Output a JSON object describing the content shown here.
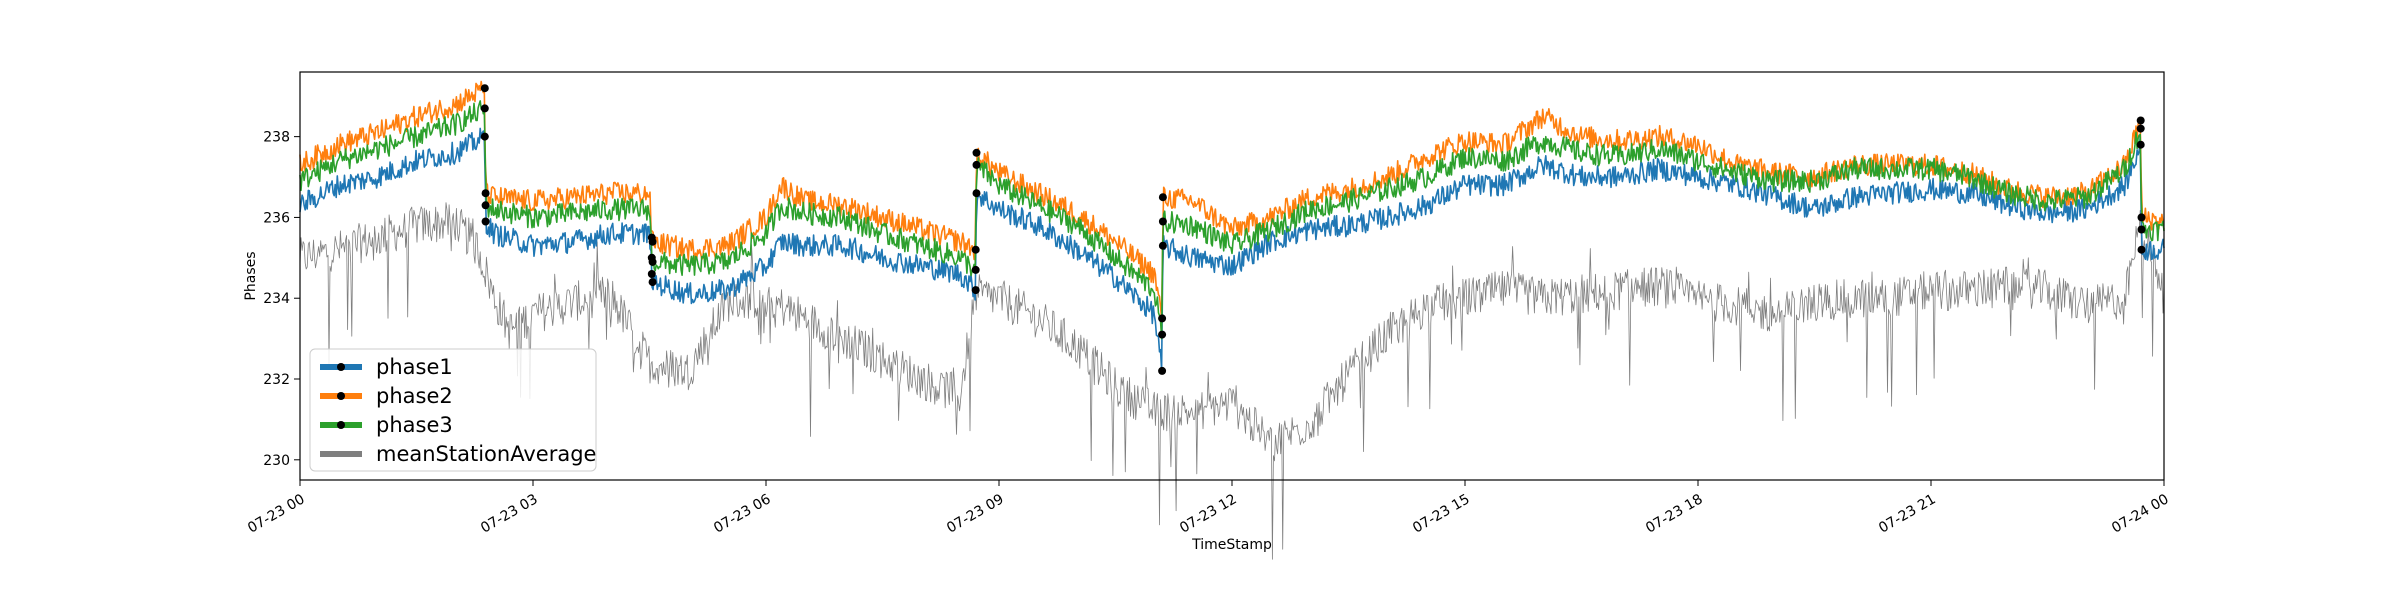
{
  "chart_data": {
    "type": "line",
    "xlabel": "TimeStamp",
    "ylabel": "Phases",
    "x_ticks": [
      "07-23 00",
      "07-23 03",
      "07-23 06",
      "07-23 09",
      "07-23 12",
      "07-23 15",
      "07-23 18",
      "07-23 21",
      "07-24 00"
    ],
    "x_tick_hours": [
      0,
      3,
      6,
      9,
      12,
      15,
      18,
      21,
      24
    ],
    "y_ticks": [
      230,
      232,
      234,
      236,
      238
    ],
    "xlim_hours": [
      0,
      24
    ],
    "ylim": [
      229.5,
      239.6
    ],
    "grid": false,
    "legend_position": "lower-left",
    "series": [
      {
        "name": "phase1",
        "color": "#1f77b4",
        "marker": true,
        "hours": [
          0.0,
          0.5,
          1.0,
          1.5,
          2.0,
          2.38,
          2.39,
          2.5,
          3.0,
          3.5,
          4.0,
          4.5,
          4.53,
          4.54,
          5.0,
          5.5,
          6.0,
          6.2,
          6.5,
          7.0,
          7.5,
          8.0,
          8.5,
          8.7,
          8.71,
          9.0,
          9.5,
          10.0,
          10.5,
          11.0,
          11.1,
          11.11,
          11.5,
          12.0,
          12.5,
          13.0,
          13.5,
          14.0,
          14.5,
          15.0,
          15.5,
          16.0,
          16.5,
          17.0,
          17.5,
          18.0,
          18.5,
          19.0,
          19.5,
          20.0,
          20.5,
          21.0,
          21.5,
          22.0,
          22.5,
          23.0,
          23.5,
          23.7,
          23.71,
          24.0
        ],
        "values": [
          236.3,
          236.8,
          237.0,
          237.4,
          237.6,
          238.0,
          235.9,
          235.6,
          235.3,
          235.4,
          235.6,
          235.6,
          234.6,
          234.4,
          234.1,
          234.2,
          234.8,
          235.4,
          235.3,
          235.3,
          235.0,
          234.8,
          234.6,
          234.2,
          236.6,
          236.2,
          235.8,
          235.2,
          234.5,
          233.6,
          232.2,
          235.3,
          235.0,
          234.8,
          235.4,
          235.7,
          235.8,
          236.0,
          236.3,
          236.8,
          236.8,
          237.3,
          237.0,
          237.0,
          237.2,
          237.0,
          236.8,
          236.5,
          236.2,
          236.5,
          236.6,
          236.7,
          236.6,
          236.3,
          236.1,
          236.2,
          236.8,
          237.8,
          235.2,
          235.2
        ]
      },
      {
        "name": "phase2",
        "color": "#ff7f0e",
        "marker": true,
        "hours": [
          0.0,
          0.5,
          1.0,
          1.5,
          2.0,
          2.38,
          2.39,
          2.5,
          3.0,
          3.5,
          4.0,
          4.5,
          4.53,
          4.54,
          5.0,
          5.5,
          6.0,
          6.2,
          6.5,
          7.0,
          7.5,
          8.0,
          8.5,
          8.7,
          8.71,
          9.0,
          9.5,
          10.0,
          10.5,
          11.0,
          11.1,
          11.11,
          11.5,
          12.0,
          12.5,
          13.0,
          13.5,
          14.0,
          14.5,
          15.0,
          15.5,
          16.0,
          16.5,
          17.0,
          17.5,
          18.0,
          18.5,
          19.0,
          19.5,
          20.0,
          20.5,
          21.0,
          21.5,
          22.0,
          22.5,
          23.0,
          23.5,
          23.7,
          23.71,
          24.0
        ],
        "values": [
          237.3,
          237.8,
          238.1,
          238.5,
          238.8,
          239.2,
          236.6,
          236.5,
          236.4,
          236.5,
          236.6,
          236.6,
          235.5,
          235.4,
          235.2,
          235.3,
          236.0,
          236.8,
          236.4,
          236.3,
          236.0,
          235.7,
          235.4,
          235.2,
          237.6,
          237.1,
          236.6,
          236.1,
          235.4,
          234.6,
          233.5,
          236.5,
          236.4,
          235.7,
          236.0,
          236.5,
          236.7,
          237.0,
          237.5,
          237.9,
          237.8,
          238.5,
          238.0,
          237.9,
          238.0,
          237.8,
          237.3,
          237.1,
          237.0,
          237.3,
          237.3,
          237.3,
          237.1,
          236.7,
          236.5,
          236.6,
          237.3,
          238.4,
          236.0,
          235.9
        ]
      },
      {
        "name": "phase3",
        "color": "#2ca02c",
        "marker": true,
        "hours": [
          0.0,
          0.5,
          1.0,
          1.5,
          2.0,
          2.38,
          2.39,
          2.5,
          3.0,
          3.5,
          4.0,
          4.5,
          4.53,
          4.54,
          5.0,
          5.5,
          6.0,
          6.2,
          6.5,
          7.0,
          7.5,
          8.0,
          8.5,
          8.7,
          8.71,
          9.0,
          9.5,
          10.0,
          10.5,
          11.0,
          11.1,
          11.11,
          11.5,
          12.0,
          12.5,
          13.0,
          13.5,
          14.0,
          14.5,
          15.0,
          15.5,
          16.0,
          16.5,
          17.0,
          17.5,
          18.0,
          18.5,
          19.0,
          19.5,
          20.0,
          20.5,
          21.0,
          21.5,
          22.0,
          22.5,
          23.0,
          23.5,
          23.7,
          23.71,
          24.0
        ],
        "values": [
          236.9,
          237.4,
          237.7,
          238.0,
          238.3,
          238.7,
          236.3,
          236.2,
          236.0,
          236.1,
          236.2,
          236.2,
          235.0,
          234.9,
          234.8,
          234.9,
          235.6,
          236.3,
          236.1,
          236.0,
          235.6,
          235.3,
          235.0,
          234.7,
          237.3,
          236.8,
          236.3,
          235.8,
          235.0,
          234.2,
          233.1,
          235.9,
          235.8,
          235.3,
          235.7,
          236.2,
          236.4,
          236.7,
          237.0,
          237.5,
          237.4,
          237.9,
          237.6,
          237.5,
          237.7,
          237.4,
          237.1,
          236.9,
          236.9,
          237.2,
          237.2,
          237.2,
          237.0,
          236.6,
          236.4,
          236.5,
          237.2,
          238.2,
          235.7,
          235.7
        ]
      },
      {
        "name": "meanStationAverage",
        "color": "#7f7f7f",
        "marker": false,
        "hours": [
          0.0,
          0.5,
          1.0,
          1.5,
          2.0,
          2.3,
          2.5,
          2.7,
          3.0,
          3.5,
          4.0,
          4.5,
          5.0,
          5.5,
          6.0,
          6.5,
          7.0,
          7.5,
          8.0,
          8.5,
          8.7,
          9.0,
          9.5,
          10.0,
          10.5,
          11.0,
          11.5,
          12.0,
          12.5,
          13.0,
          13.5,
          14.0,
          14.5,
          15.0,
          15.5,
          16.0,
          16.5,
          17.0,
          17.5,
          18.0,
          18.5,
          19.0,
          19.5,
          20.0,
          20.5,
          21.0,
          21.5,
          22.0,
          22.5,
          23.0,
          23.5,
          23.7,
          24.0
        ],
        "values": [
          235.0,
          235.2,
          235.5,
          235.8,
          235.9,
          235.2,
          234.0,
          233.2,
          233.6,
          233.9,
          234.1,
          232.4,
          232.2,
          233.9,
          234.0,
          233.5,
          233.0,
          232.5,
          232.0,
          231.6,
          234.1,
          234.0,
          233.5,
          232.8,
          231.8,
          231.2,
          231.2,
          231.4,
          230.4,
          230.9,
          232.1,
          233.1,
          233.8,
          234.0,
          234.2,
          234.0,
          234.1,
          234.2,
          234.3,
          234.0,
          233.8,
          233.6,
          233.9,
          234.0,
          234.0,
          234.2,
          234.2,
          234.3,
          234.2,
          233.8,
          234.0,
          235.9,
          234.0
        ]
      }
    ]
  }
}
